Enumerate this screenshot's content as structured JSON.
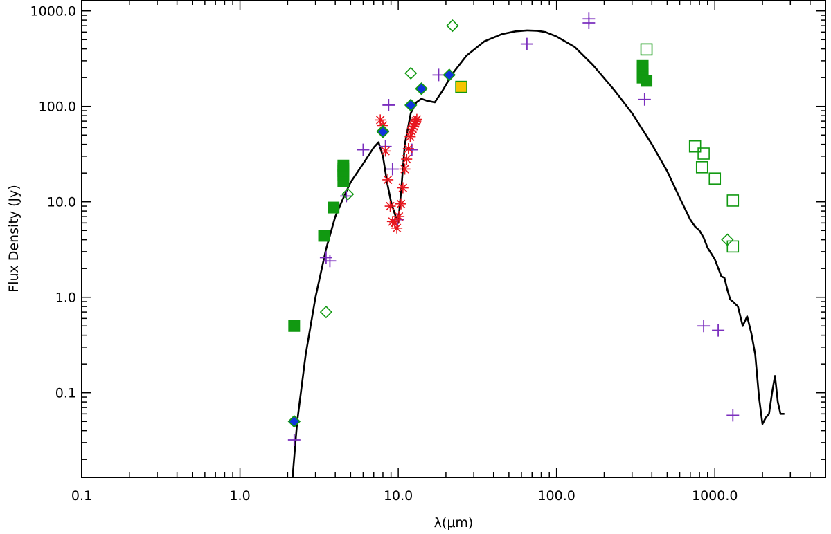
{
  "chart_data": {
    "type": "scatter",
    "title": "",
    "xlabel": "λ(μm)",
    "ylabel": "Flux Density (Jy)",
    "xscale": "log",
    "yscale": "log",
    "xlim": [
      0.1,
      5000
    ],
    "ylim": [
      0.013,
      1300
    ],
    "xticks": [
      {
        "value": 0.1,
        "label": "0.1"
      },
      {
        "value": 1,
        "label": "1.0"
      },
      {
        "value": 10,
        "label": "10.0"
      },
      {
        "value": 100,
        "label": "100.0"
      },
      {
        "value": 1000,
        "label": "1000.0"
      }
    ],
    "yticks": [
      {
        "value": 0.1,
        "label": "0.1"
      },
      {
        "value": 1,
        "label": "1.0"
      },
      {
        "value": 10,
        "label": "10.0"
      },
      {
        "value": 100,
        "label": "100.0"
      },
      {
        "value": 1000,
        "label": "1000.0"
      }
    ],
    "colors": {
      "model": "#000000",
      "plus": "#7b2fbe",
      "asterisk": "#e8161e",
      "green": "#119911",
      "blue_fill": "#1133dd",
      "yellow_fill": "#f5c400"
    },
    "series": [
      {
        "name": "model SED",
        "kind": "line",
        "x": [
          2.15,
          2.3,
          2.6,
          3.0,
          3.5,
          4.0,
          4.5,
          5.0,
          6.0,
          7.0,
          7.5,
          8.0,
          8.5,
          9.0,
          9.5,
          10.0,
          10.5,
          11.0,
          12.0,
          13.0,
          14.0,
          15.0,
          17.0,
          19.0,
          22.0,
          27.0,
          35.0,
          45.0,
          55.0,
          65.0,
          75.0,
          85.0,
          100.0,
          130.0,
          170.0,
          230.0,
          300.0,
          400.0,
          500.0,
          600.0,
          700.0,
          750.0,
          800.0,
          850.0,
          900.0,
          1000.0,
          1100.0,
          1150.0,
          1200.0,
          1250.0,
          1300.0,
          1400.0,
          1500.0,
          1600.0,
          1700.0,
          1800.0,
          1900.0,
          2000.0,
          2100.0,
          2200.0,
          2300.0,
          2400.0,
          2500.0,
          2600.0,
          2750.0
        ],
        "y": [
          0.013,
          0.05,
          0.25,
          1.0,
          3.2,
          7.0,
          11.0,
          16.0,
          25.0,
          37.0,
          42.0,
          30.0,
          16.0,
          10.0,
          7.5,
          6.0,
          15.0,
          40.0,
          85.0,
          110.0,
          120.0,
          115.0,
          110.0,
          145.0,
          220.0,
          340.0,
          480.0,
          570.0,
          610.0,
          625.0,
          620.0,
          600.0,
          540.0,
          420.0,
          270.0,
          150.0,
          85.0,
          40.0,
          21.0,
          11.0,
          6.5,
          5.5,
          5.0,
          4.2,
          3.3,
          2.5,
          1.65,
          1.6,
          1.2,
          0.95,
          0.9,
          0.8,
          0.5,
          0.63,
          0.42,
          0.25,
          0.09,
          0.047,
          0.055,
          0.06,
          0.1,
          0.15,
          0.08,
          0.06,
          0.06
        ]
      },
      {
        "name": "purple crosses",
        "kind": "plus",
        "x": [
          2.2,
          3.5,
          3.7,
          4.7,
          6.0,
          8.0,
          8.3,
          8.7,
          9.2,
          9.9,
          12.2,
          18.0,
          65.0,
          160.0,
          160.0,
          360.0,
          850.0,
          1050.0,
          1300.0
        ],
        "y": [
          0.032,
          2.6,
          2.4,
          11.5,
          35.0,
          55.0,
          38.0,
          103.0,
          22.0,
          6.5,
          35.0,
          213.0,
          450.0,
          750.0,
          825.0,
          118.0,
          0.5,
          0.45,
          0.058
        ]
      },
      {
        "name": "red asterisks",
        "kind": "asterisk",
        "x": [
          7.7,
          8.0,
          8.3,
          8.6,
          8.9,
          9.2,
          9.5,
          9.8,
          10.1,
          10.4,
          10.7,
          11.0,
          11.3,
          11.6,
          11.9,
          12.1,
          12.3,
          12.5,
          12.7,
          12.9,
          13.1
        ],
        "y": [
          72.0,
          63.0,
          34.0,
          17.0,
          9.0,
          6.2,
          6.0,
          5.3,
          7.0,
          9.5,
          14.0,
          22.0,
          28.0,
          36.0,
          48.0,
          55.0,
          58.0,
          62.0,
          66.0,
          70.0,
          73.0
        ]
      },
      {
        "name": "green open diamonds",
        "kind": "diamond-open",
        "x": [
          3.5,
          4.8,
          8.0,
          12.0,
          22.0,
          1200.0
        ],
        "y": [
          0.7,
          12.0,
          55.0,
          222.0,
          700.0,
          4.0
        ]
      },
      {
        "name": "blue filled diamonds",
        "kind": "diamond-filled",
        "x": [
          2.2,
          8.0,
          12.0,
          14.0,
          21.0
        ],
        "y": [
          0.05,
          54.0,
          103.0,
          153.0,
          213.0
        ]
      },
      {
        "name": "green filled squares",
        "kind": "square-filled",
        "x": [
          2.2,
          3.4,
          3.9,
          4.5,
          4.5,
          4.5,
          4.5,
          4.5,
          350.0,
          350.0,
          350.0,
          350.0,
          370.0
        ],
        "y": [
          0.5,
          4.4,
          8.7,
          16.5,
          19.0,
          21.0,
          22.0,
          24.0,
          200.0,
          220.0,
          245.0,
          265.0,
          185.0
        ]
      },
      {
        "name": "yellow filled square",
        "kind": "square-yellow",
        "x": [
          25.0
        ],
        "y": [
          160.0
        ]
      },
      {
        "name": "green open squares",
        "kind": "square-open",
        "x": [
          370.0,
          750.0,
          850.0,
          830.0,
          1000.0,
          1300.0,
          1300.0
        ],
        "y": [
          395.0,
          38.0,
          32.0,
          23.0,
          17.5,
          10.3,
          3.4
        ]
      }
    ]
  }
}
